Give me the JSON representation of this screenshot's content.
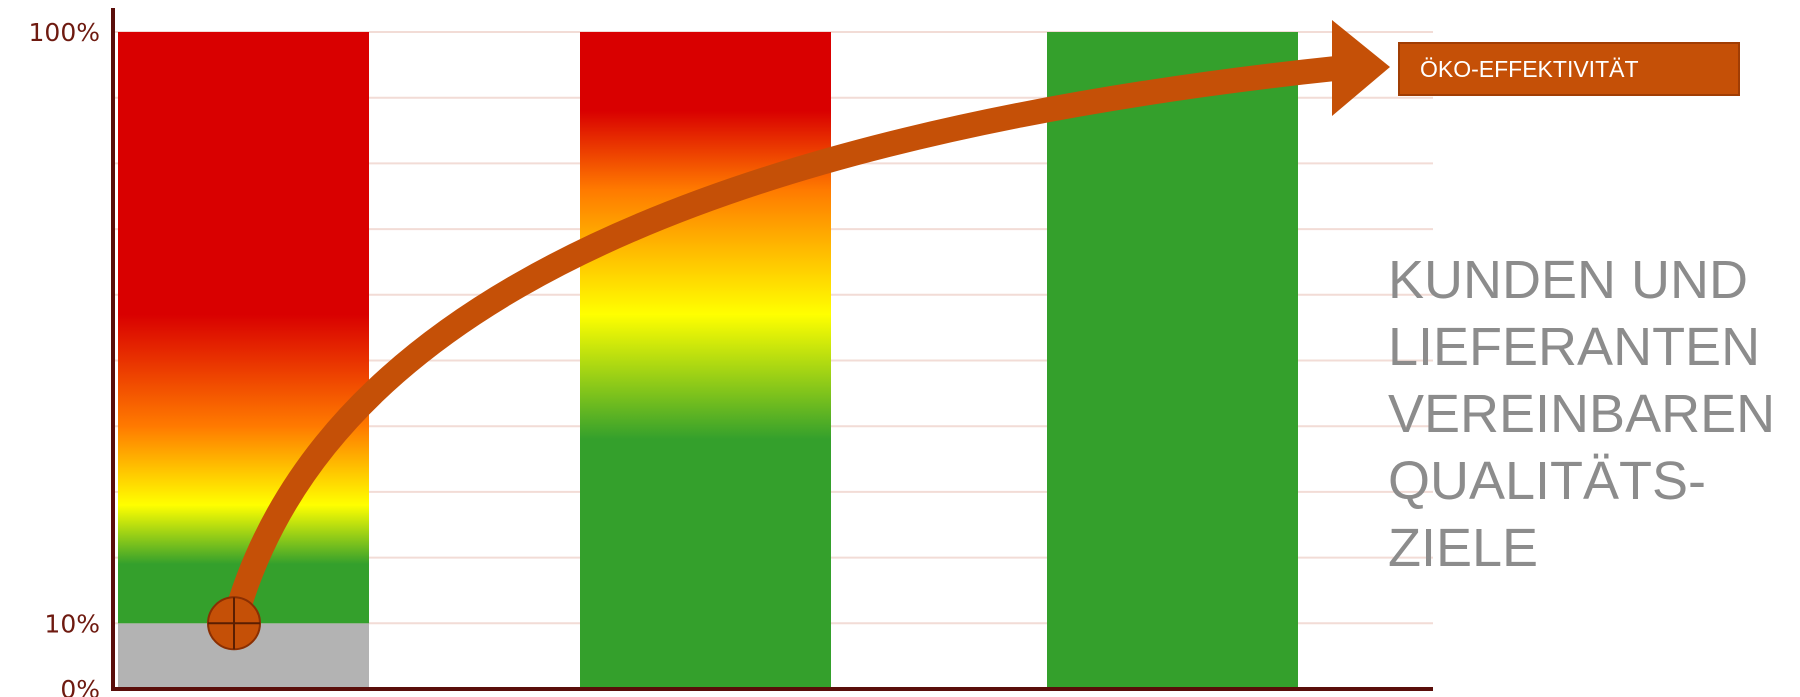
{
  "colors": {
    "red": "#d90000",
    "orange": "#ff7a00",
    "yellow": "#ffff00",
    "green": "#34a02c",
    "gray": "#b3b3b3",
    "arrow": "#c55007",
    "axis": "#5a0e0a",
    "grid": "#f2dcd6",
    "side_text": "#8c8c8c"
  },
  "badge": {
    "label": "ÖKO-EFFEKTIVITÄT"
  },
  "side_text": {
    "lines": [
      "KUNDEN UND",
      "LIEFERANTEN",
      "VEREINBAREN",
      "QUALITÄTS-",
      "ZIELE"
    ]
  },
  "chart_data": {
    "type": "bar",
    "title": "",
    "xlabel": "",
    "ylabel": "",
    "ylim": [
      0,
      100
    ],
    "y_ticks": [
      {
        "value": 0,
        "label": "0%"
      },
      {
        "value": 10,
        "label": "10%"
      },
      {
        "value": 100,
        "label": "100%"
      }
    ],
    "grid": true,
    "categories": [
      "",
      "",
      ""
    ],
    "bars": [
      {
        "total": 100,
        "base_gray_to": 10,
        "gradient_stops": [
          {
            "value": 10,
            "color": "green"
          },
          {
            "value": 19,
            "color": "green"
          },
          {
            "value": 28,
            "color": "yellow"
          },
          {
            "value": 40,
            "color": "orange"
          },
          {
            "value": 57,
            "color": "red"
          },
          {
            "value": 100,
            "color": "red"
          }
        ]
      },
      {
        "total": 100,
        "base_gray_to": 0,
        "gradient_stops": [
          {
            "value": 0,
            "color": "green"
          },
          {
            "value": 38,
            "color": "green"
          },
          {
            "value": 57,
            "color": "yellow"
          },
          {
            "value": 76,
            "color": "orange"
          },
          {
            "value": 88,
            "color": "red"
          },
          {
            "value": 100,
            "color": "red"
          }
        ]
      },
      {
        "total": 100,
        "base_gray_to": 0,
        "gradient_stops": [
          {
            "value": 0,
            "color": "green"
          },
          {
            "value": 100,
            "color": "green"
          }
        ]
      }
    ],
    "trend_arrow": {
      "start": {
        "bar": 0,
        "value": 10
      },
      "label": "ÖKO-EFFEKTIVITÄT"
    }
  }
}
